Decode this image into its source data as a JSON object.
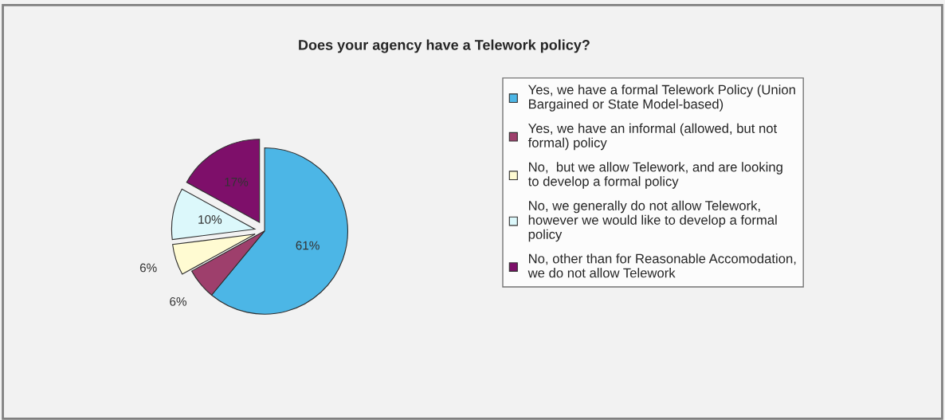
{
  "chart_data": {
    "type": "pie",
    "title": "Does your agency have a Telework policy?",
    "categories": [
      "Yes, we have a formal Telework Policy (Union Bargained or State Model-based)",
      "Yes, we have an informal (allowed, but not formal) policy",
      "No,  but we allow Telework, and are looking to develop a formal policy",
      "No, we generally do not allow Telework, however we would like to develop a formal policy",
      "No, other than for Reasonable Accomodation, we do not allow Telework"
    ],
    "values": [
      61,
      6,
      6,
      10,
      17
    ],
    "value_labels": [
      "61%",
      "6%",
      "6%",
      "10%",
      "17%"
    ],
    "colors": [
      "#4cb6e6",
      "#9e3f6c",
      "#fffbd2",
      "#dcf8fb",
      "#7e0f6a"
    ],
    "legend": "right"
  }
}
